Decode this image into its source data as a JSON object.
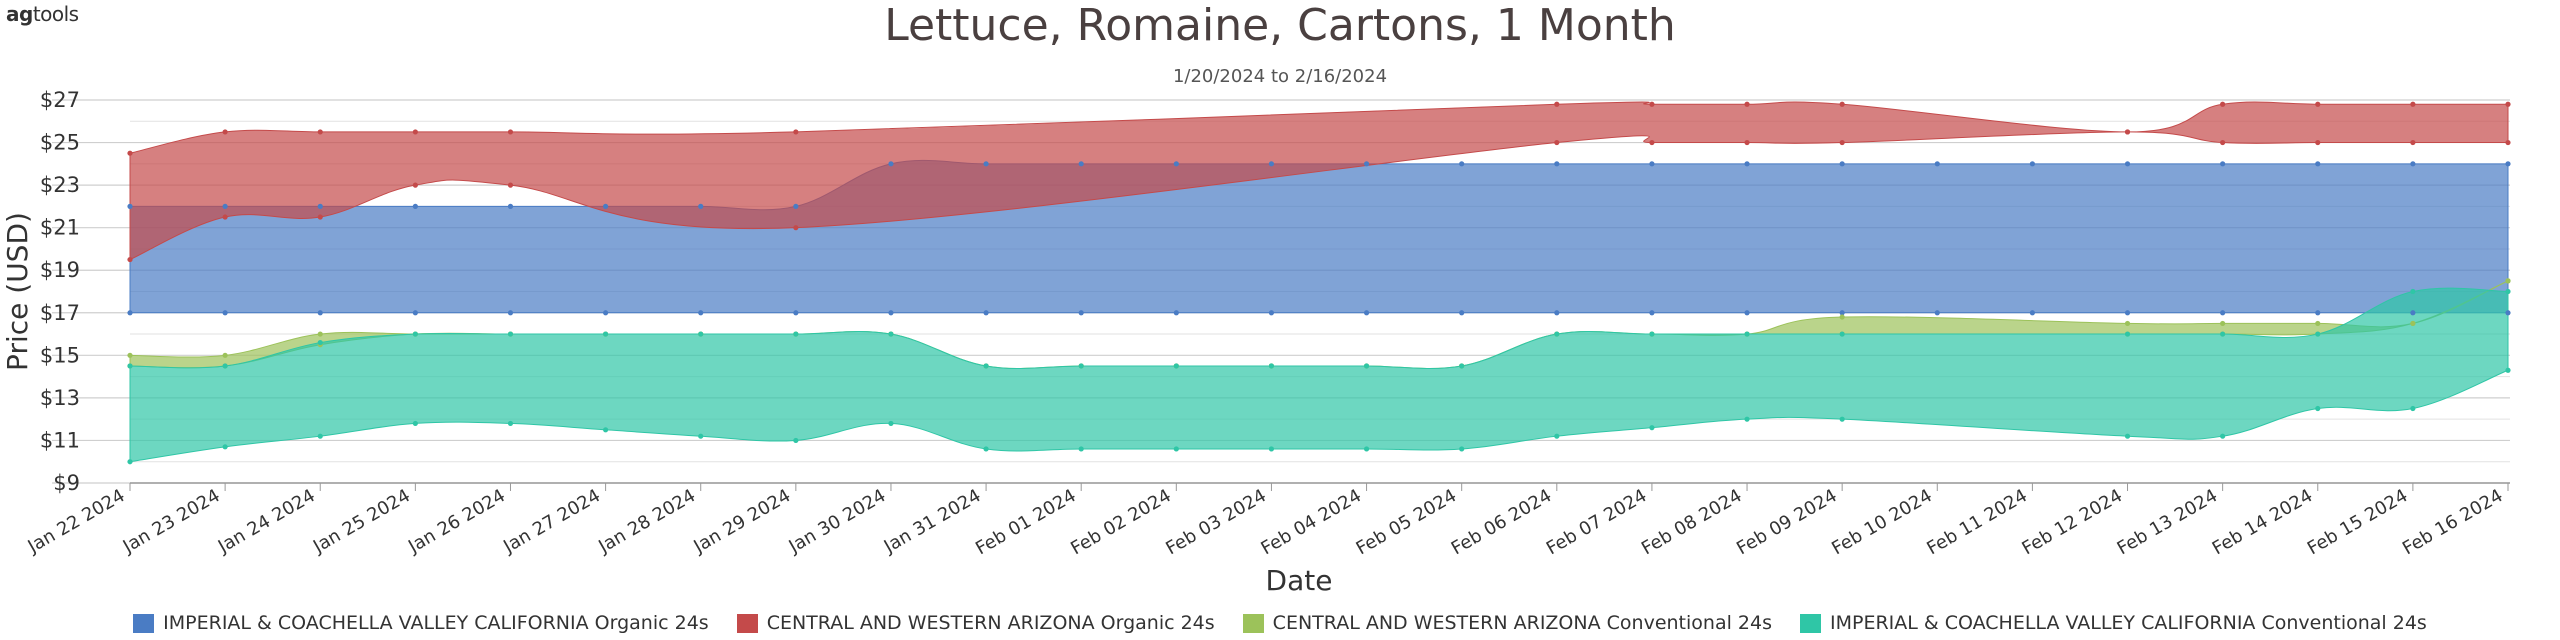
{
  "brand": {
    "prefix": "ag",
    "suffix": "tools"
  },
  "chart_data": {
    "type": "area",
    "title": "Lettuce, Romaine, Cartons, 1 Month",
    "subtitle": "1/20/2024 to 2/16/2024",
    "xlabel": "Date",
    "ylabel": "Price (USD)",
    "ylim": [
      9,
      27
    ],
    "yticks": [
      9,
      11,
      13,
      15,
      17,
      19,
      21,
      23,
      25,
      27
    ],
    "ytick_labels": [
      "$9",
      "$11",
      "$13",
      "$15",
      "$17",
      "$19",
      "$21",
      "$23",
      "$25",
      "$27"
    ],
    "grid": true,
    "legend_position": "bottom",
    "categories": [
      "Jan 22 2024",
      "Jan 23 2024",
      "Jan 24 2024",
      "Jan 25 2024",
      "Jan 26 2024",
      "Jan 27 2024",
      "Jan 28 2024",
      "Jan 29 2024",
      "Jan 30 2024",
      "Jan 31 2024",
      "Feb 01 2024",
      "Feb 02 2024",
      "Feb 03 2024",
      "Feb 04 2024",
      "Feb 05 2024",
      "Feb 06 2024",
      "Feb 07 2024",
      "Feb 08 2024",
      "Feb 09 2024",
      "Feb 10 2024",
      "Feb 11 2024",
      "Feb 12 2024",
      "Feb 13 2024",
      "Feb 14 2024",
      "Feb 15 2024",
      "Feb 16 2024"
    ],
    "series": [
      {
        "name": "IMPERIAL & COACHELLA VALLEY CALIFORNIA Organic 24s",
        "color": "#4a7cc4",
        "low": [
          17,
          17,
          17,
          17,
          17,
          17,
          17,
          17,
          17,
          17,
          17,
          17,
          17,
          17,
          17,
          17,
          17,
          17,
          17,
          17,
          17,
          17,
          17,
          17,
          17,
          17
        ],
        "high": [
          22,
          22,
          22,
          22,
          22,
          22,
          22,
          22,
          24,
          24,
          24,
          24,
          24,
          24,
          24,
          24,
          24,
          24,
          24,
          24,
          24,
          24,
          24,
          24,
          24,
          24
        ]
      },
      {
        "name": "CENTRAL AND WESTERN ARIZONA Organic 24s",
        "color": "#c44a4a",
        "low": [
          19.5,
          21.5,
          21.5,
          23,
          23,
          null,
          null,
          21,
          null,
          null,
          null,
          null,
          null,
          null,
          null,
          25,
          25,
          25,
          25,
          null,
          null,
          25.5,
          25,
          25,
          25,
          25
        ],
        "high": [
          24.5,
          25.5,
          25.5,
          25.5,
          25.5,
          null,
          null,
          25.5,
          null,
          null,
          null,
          null,
          null,
          null,
          null,
          26.8,
          26.8,
          26.8,
          26.8,
          null,
          null,
          25.5,
          26.8,
          26.8,
          26.8,
          26.8
        ]
      },
      {
        "name": "CENTRAL AND WESTERN ARIZONA Conventional 24s",
        "color": "#9cc25a",
        "low": [
          14.5,
          14.5,
          15.5,
          16,
          16,
          16,
          16,
          16,
          16,
          14.5,
          14.5,
          14.5,
          14.5,
          14.5,
          14.5,
          16,
          16,
          16,
          16,
          null,
          null,
          16,
          16,
          16,
          16.5,
          18.5
        ],
        "high": [
          15,
          15,
          16,
          16,
          16,
          16,
          16,
          16,
          16,
          14.5,
          14.5,
          14.5,
          14.5,
          14.5,
          14.5,
          16,
          16,
          16,
          16.8,
          null,
          null,
          16.5,
          16.5,
          16.5,
          16.5,
          18.5
        ]
      },
      {
        "name": "IMPERIAL & COACHELLA VALLEY CALIFORNIA Conventional 24s",
        "color": "#2fc6a6",
        "low": [
          10,
          10.7,
          11.2,
          11.8,
          11.8,
          11.5,
          11.2,
          11,
          11.8,
          10.6,
          10.6,
          10.6,
          10.6,
          10.6,
          10.6,
          11.2,
          11.6,
          12,
          12,
          null,
          null,
          11.2,
          11.2,
          12.5,
          12.5,
          14.3
        ],
        "high": [
          14.5,
          14.5,
          15.6,
          16,
          16,
          16,
          16,
          16,
          16,
          14.5,
          14.5,
          14.5,
          14.5,
          14.5,
          14.5,
          16,
          16,
          16,
          16,
          null,
          null,
          16,
          16,
          16,
          18,
          18
        ]
      }
    ]
  }
}
